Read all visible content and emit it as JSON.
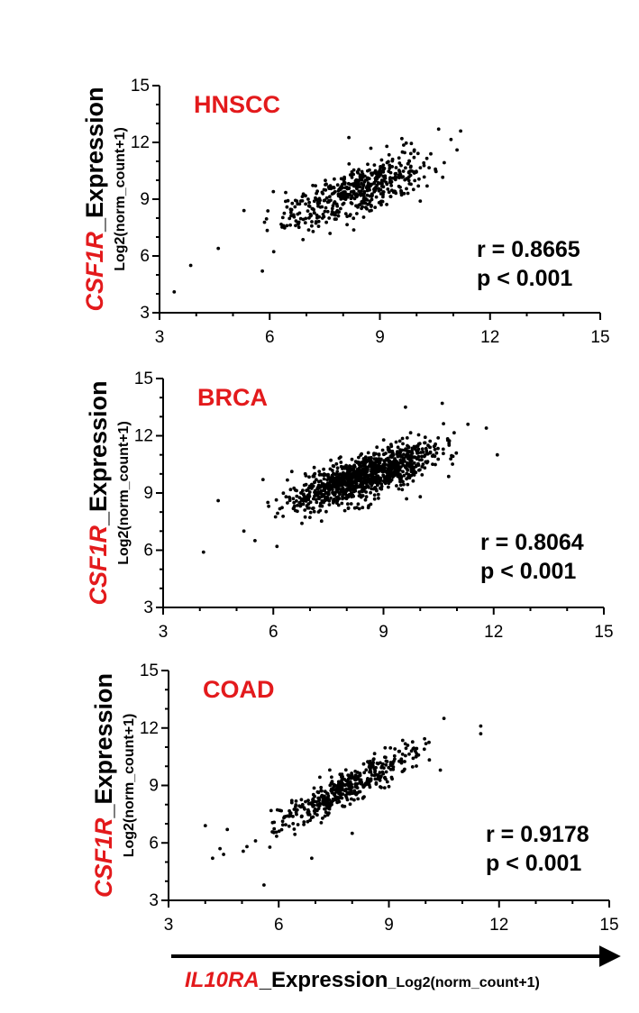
{
  "figure": {
    "footer_axis": {
      "gene": "IL10RA",
      "label": "_Expression",
      "unit": "_Log2(norm_count+1)"
    },
    "colors": {
      "accent": "#e31a1c",
      "ink": "#000000"
    }
  },
  "chart_data": [
    {
      "type": "scatter",
      "title": "HNSCC",
      "ylabel_gene": "CSF1R",
      "ylabel_suffix": "_Expression",
      "ylabel_unit": "Log2(norm_count+1)",
      "xlim": [
        3,
        15
      ],
      "ylim": [
        3,
        15
      ],
      "xticks": [
        3,
        6,
        9,
        12,
        15
      ],
      "yticks": [
        3,
        6,
        9,
        12,
        15
      ],
      "stat_r": "r = 0.8665",
      "stat_p": "p < 0.001",
      "seed": 11,
      "slope": 0.7,
      "intercept": 3.55,
      "noise": 0.65,
      "n": 520,
      "x_range": [
        5.5,
        11.2
      ],
      "outliers": [
        [
          3.4,
          4.1
        ],
        [
          3.85,
          5.5
        ],
        [
          4.6,
          6.4
        ],
        [
          5.3,
          8.4
        ],
        [
          5.8,
          5.2
        ],
        [
          6.1,
          9.4
        ],
        [
          10.6,
          12.7
        ],
        [
          11.2,
          12.6
        ],
        [
          11.1,
          11.6
        ],
        [
          10.1,
          8.9
        ],
        [
          9.6,
          12.2
        ]
      ],
      "series": [
        {
          "name": "samples",
          "color": "#000000"
        }
      ]
    },
    {
      "type": "scatter",
      "title": "BRCA",
      "ylabel_gene": "CSF1R",
      "ylabel_suffix": "_Expression",
      "ylabel_unit": "Log2(norm_count+1)",
      "xlim": [
        3,
        15
      ],
      "ylim": [
        3,
        15
      ],
      "xticks": [
        3,
        6,
        9,
        12,
        15
      ],
      "yticks": [
        3,
        6,
        9,
        12,
        15
      ],
      "stat_r": "r = 0.8064",
      "stat_p": "p < 0.001",
      "seed": 23,
      "slope": 0.62,
      "intercept": 4.6,
      "noise": 0.55,
      "n": 1080,
      "x_range": [
        5.6,
        11.4
      ],
      "outliers": [
        [
          4.1,
          5.9
        ],
        [
          4.5,
          8.6
        ],
        [
          5.2,
          7.0
        ],
        [
          5.5,
          6.5
        ],
        [
          6.1,
          6.2
        ],
        [
          11.8,
          12.4
        ],
        [
          12.1,
          11.0
        ],
        [
          10.6,
          13.7
        ],
        [
          9.6,
          13.5
        ],
        [
          11.3,
          12.6
        ],
        [
          10.0,
          8.8
        ]
      ],
      "series": [
        {
          "name": "samples",
          "color": "#000000"
        }
      ]
    },
    {
      "type": "scatter",
      "title": "COAD",
      "ylabel_gene": "CSF1R",
      "ylabel_suffix": "_Expression",
      "ylabel_unit": "Log2(norm_count+1)",
      "xlim": [
        3,
        15
      ],
      "ylim": [
        3,
        15
      ],
      "xticks": [
        3,
        6,
        9,
        12,
        15
      ],
      "yticks": [
        3,
        6,
        9,
        12,
        15
      ],
      "stat_r": "r = 0.9178",
      "stat_p": "p < 0.001",
      "seed": 37,
      "slope": 0.98,
      "intercept": 1.2,
      "noise": 0.45,
      "n": 430,
      "x_range": [
        5.0,
        10.8
      ],
      "outliers": [
        [
          4.0,
          6.9
        ],
        [
          4.2,
          5.2
        ],
        [
          4.4,
          5.7
        ],
        [
          4.5,
          5.4
        ],
        [
          4.6,
          6.7
        ],
        [
          5.6,
          3.8
        ],
        [
          6.9,
          5.2
        ],
        [
          8.0,
          6.5
        ],
        [
          11.5,
          12.1
        ],
        [
          11.5,
          11.7
        ],
        [
          10.5,
          12.5
        ],
        [
          10.4,
          9.8
        ]
      ],
      "series": [
        {
          "name": "samples",
          "color": "#000000"
        }
      ]
    }
  ]
}
